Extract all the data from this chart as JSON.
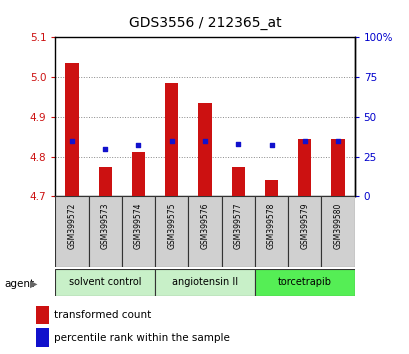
{
  "title": "GDS3556 / 212365_at",
  "samples": [
    "GSM399572",
    "GSM399573",
    "GSM399574",
    "GSM399575",
    "GSM399576",
    "GSM399577",
    "GSM399578",
    "GSM399579",
    "GSM399580"
  ],
  "bar_values": [
    5.035,
    4.775,
    4.812,
    4.985,
    4.935,
    4.775,
    4.742,
    4.845,
    4.845
  ],
  "percentile_values": [
    35,
    30,
    32,
    35,
    35,
    33,
    32,
    35,
    35
  ],
  "ylim_left": [
    4.7,
    5.1
  ],
  "ylim_right": [
    0,
    100
  ],
  "yticks_left": [
    4.7,
    4.8,
    4.9,
    5.0,
    5.1
  ],
  "yticks_right": [
    0,
    25,
    50,
    75,
    100
  ],
  "ytick_right_labels": [
    "0",
    "25",
    "50",
    "75",
    "100%"
  ],
  "bar_color": "#cc1111",
  "dot_color": "#1111cc",
  "bar_bottom": 4.7,
  "groups": [
    {
      "label": "solvent control",
      "indices": [
        0,
        1,
        2
      ],
      "color": "#c8f0c8"
    },
    {
      "label": "angiotensin II",
      "indices": [
        3,
        4,
        5
      ],
      "color": "#c8f0c8"
    },
    {
      "label": "torcetrapib",
      "indices": [
        6,
        7,
        8
      ],
      "color": "#55ee55"
    }
  ],
  "agent_label": "agent",
  "legend_bar_label": "transformed count",
  "legend_dot_label": "percentile rank within the sample",
  "title_color": "#000000",
  "left_axis_color": "#cc1111",
  "right_axis_color": "#0000cc",
  "grid_color": "#000000",
  "background_color": "#ffffff",
  "plot_bg_color": "#ffffff",
  "tick_label_bg": "#d0d0d0",
  "spine_color": "#000000"
}
